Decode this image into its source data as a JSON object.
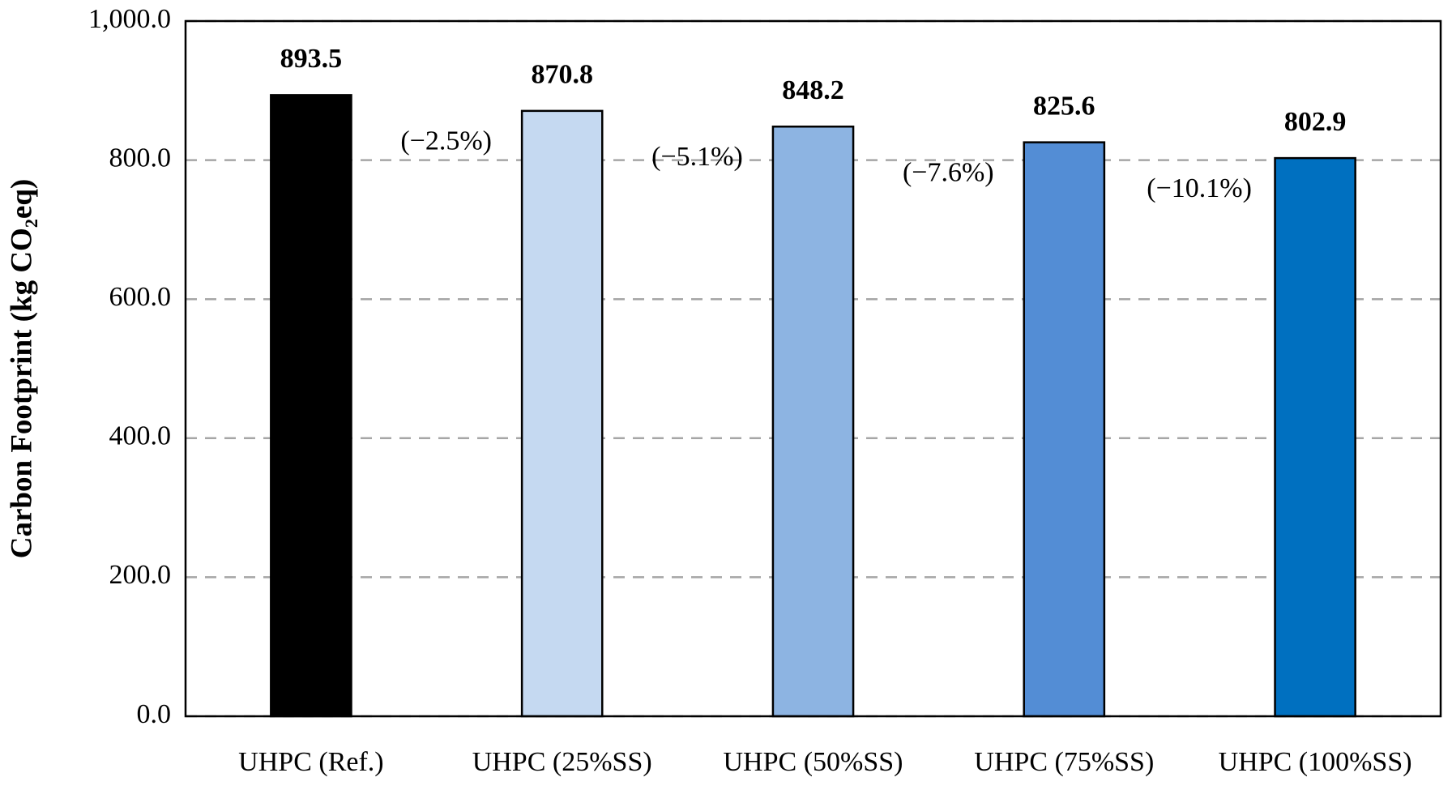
{
  "chart_data": {
    "type": "bar",
    "y_label": "Carbon Footprint (kg CO₂eq)",
    "categories": [
      "UHPC (Ref.)",
      "UHPC (25%SS)",
      "UHPC (50%SS)",
      "UHPC (75%SS)",
      "UHPC (100%SS)"
    ],
    "values": [
      893.5,
      870.8,
      848.2,
      825.6,
      802.9
    ],
    "colors": [
      "#000000",
      "#c5d9f1",
      "#8db4e2",
      "#538dd5",
      "#0070c0"
    ],
    "annotations": [
      "(−2.5%)",
      "(−5.1%)",
      "(−7.6%)",
      "(−10.1%)"
    ],
    "ylim": [
      0,
      1000
    ],
    "yticks": [
      {
        "value": 0,
        "label": "0.0"
      },
      {
        "value": 200,
        "label": "200.0"
      },
      {
        "value": 400,
        "label": "400.0"
      },
      {
        "value": 600,
        "label": "600.0"
      },
      {
        "value": 800,
        "label": "800.0"
      },
      {
        "value": 1000,
        "label": "1,000.0"
      }
    ],
    "grid": true
  }
}
